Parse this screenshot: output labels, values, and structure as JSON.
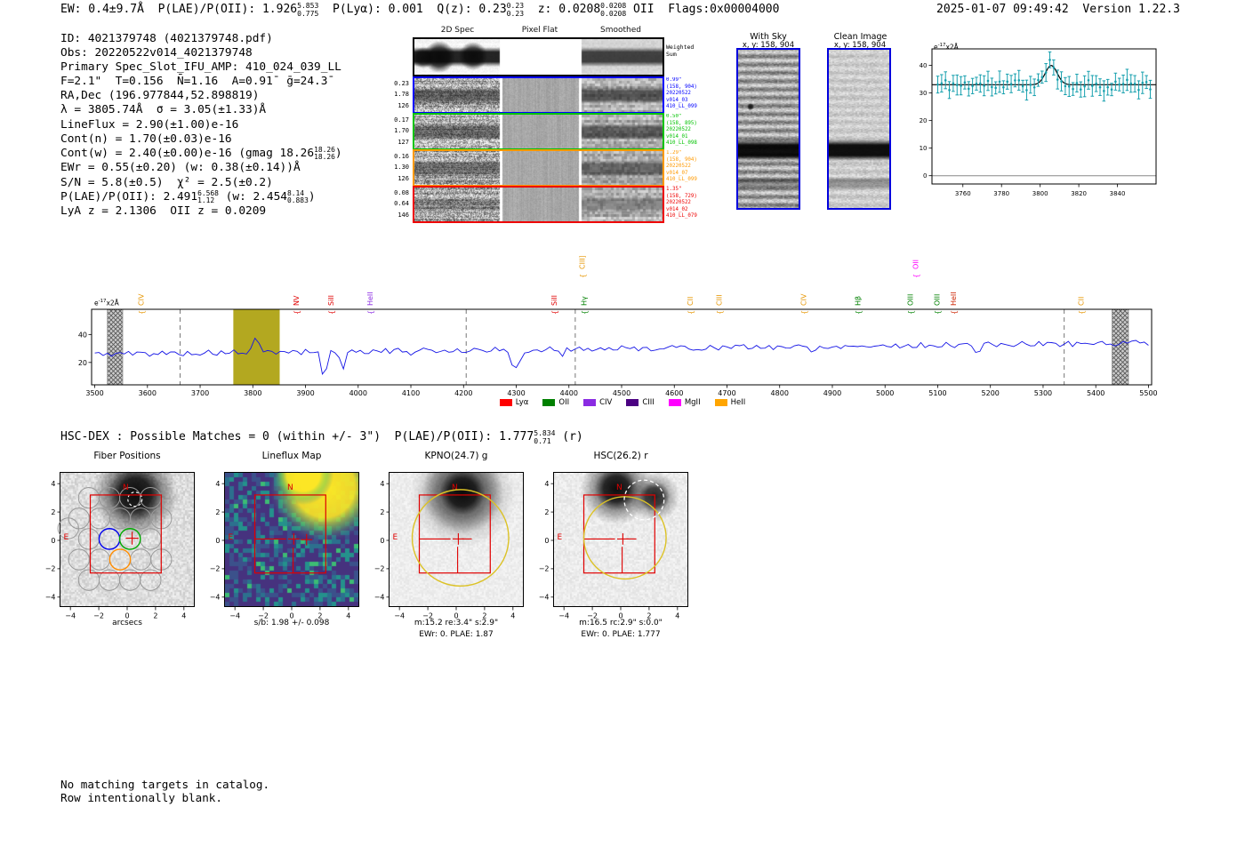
{
  "header": {
    "left_segments": [
      "EW: 0.4±9.7Å  P(LAE)/P(OII): 1.926",
      {
        "stack": [
          "5.853",
          "0.775"
        ]
      },
      "  P(Lyα): 0.001  Q(z): 0.23",
      {
        "stack": [
          "0.23",
          "0.23"
        ]
      },
      "  z: 0.0208",
      {
        "stack": [
          "0.0208",
          "0.0208"
        ]
      },
      " OII  Flags:0x00004000"
    ],
    "datetime": "2025-01-07 09:49:42",
    "version": "Version 1.22.3"
  },
  "info_lines": [
    [
      "ID: 4021379748 (4021379748.pdf)"
    ],
    [
      "Obs: 20220522v014_4021379748"
    ],
    [
      "Primary Spec_Slot_IFU_AMP: 410_024_039_LL"
    ],
    [
      "F=2.1\"  T=0.156  N̄=1.16  A=0.91̄  ḡ=24.3̄"
    ],
    [
      "RA,Dec (196.977844,52.898819)"
    ],
    [
      "λ = 3805.74Å  σ = 3.05(±1.33)Å"
    ],
    [
      "LineFlux = 2.90(±1.00)e-16"
    ],
    [
      "Cont(n) = 1.70(±0.03)e-16"
    ],
    [
      "Cont(w) = 2.40(±0.00)e-16 (gmag 18.26",
      {
        "stack": [
          "18.26",
          "18.26"
        ]
      },
      ")"
    ],
    [
      "EWr = 0.55(±0.20) (w: 0.38(±0.14))Å"
    ],
    [
      "S/N = 5.8(±0.5)  χ² = 2.5(±0.2)"
    ],
    [
      "P(LAE)/P(OII): 2.491",
      {
        "stack": [
          "6.568",
          "1.12"
        ]
      },
      " (w: 2.454",
      {
        "stack": [
          "8.14",
          "0.883"
        ]
      },
      ")"
    ],
    [
      "LyA z = 2.1306  OII z = 0.0209"
    ]
  ],
  "spec2d": {
    "col_titles": [
      "2D Spec",
      "Pixel Flat",
      "Smoothed"
    ],
    "weighted_label": [
      "Weighted",
      "Sum"
    ],
    "rows": [
      {
        "stats": [
          "0.23",
          "1.78",
          "126"
        ],
        "color": "#0000ff",
        "ann": [
          "0.99\"",
          "(158, 904)",
          "20220522",
          "v014_03",
          "410_LL_099"
        ]
      },
      {
        "stats": [
          "0.17",
          "1.70",
          "127"
        ],
        "color": "#00c300",
        "ann": [
          "0.50\"",
          "(158, 895)",
          "20220522",
          "v014_01",
          "410_LL_098"
        ]
      },
      {
        "stats": [
          "0.16",
          "1.30",
          "126"
        ],
        "color": "#ff9900",
        "ann": [
          "1.29\"",
          "(158, 904)",
          "20220522",
          "v014_07",
          "410_LL_099"
        ]
      },
      {
        "stats": [
          "0.08",
          "0.64",
          "146"
        ],
        "color": "#ee0000",
        "ann": [
          "1.35\"",
          "(158, 729)",
          "20220522",
          "v014_02",
          "410_LL_079"
        ]
      }
    ]
  },
  "sky_panels": [
    {
      "title": "With Sky",
      "coords": "x, y: 158, 904"
    },
    {
      "title": "Clean Image",
      "coords": "x, y: 158, 904"
    }
  ],
  "chart_data": [
    {
      "id": "line_fit_zoom",
      "type": "scatter",
      "title": "",
      "ylabel": "e-17x2Å",
      "xlim": [
        3744,
        3860
      ],
      "ylim": [
        -3,
        46
      ],
      "xticks": [
        3760,
        3780,
        3800,
        3820,
        3840
      ],
      "yticks": [
        0,
        10,
        20,
        30,
        40
      ],
      "point_color": "#17a0ae",
      "fit_color": "#000000",
      "fit": {
        "baseline": 33,
        "peak_x": 3805.74,
        "peak_amp": 7,
        "sigma": 3.05
      },
      "noise_model": {
        "seed": 11,
        "noise": 2.3,
        "err": 3.0,
        "step": 2,
        "range": [
          3747,
          3857
        ]
      }
    },
    {
      "id": "full_spectrum",
      "type": "line",
      "ylabel": "e-17x2Å",
      "line_color": "#1414e6",
      "xlim": [
        3494,
        5506
      ],
      "ylim": [
        4,
        58
      ],
      "xticks": [
        3500,
        3600,
        3700,
        3800,
        3900,
        4000,
        4100,
        4200,
        4300,
        4400,
        4500,
        4600,
        4700,
        4800,
        4900,
        5000,
        5100,
        5200,
        5300,
        5400,
        5500
      ],
      "yticks": [
        20,
        40
      ],
      "highlight_band": {
        "x0": 3763,
        "x1": 3851,
        "color": "#b3a820"
      },
      "hatch_bands": [
        [
          3524,
          3553
        ],
        [
          5431,
          5462
        ]
      ],
      "dashed_lines": [
        3662,
        4205,
        4412,
        5340
      ],
      "continuum": {
        "start_wave": 3500,
        "end_wave": 5506,
        "start_value": 26,
        "end_value": 34,
        "noise": 2.0,
        "seed": 5,
        "step": 8
      },
      "features": [
        {
          "x": 3806,
          "amp": 10,
          "sigma": 5
        },
        {
          "x": 3935,
          "amp": -18,
          "sigma": 5
        },
        {
          "x": 3969,
          "amp": -14,
          "sigma": 4
        },
        {
          "x": 4102,
          "amp": -5,
          "sigma": 5
        },
        {
          "x": 4300,
          "amp": -14,
          "sigma": 9
        },
        {
          "x": 4385,
          "amp": -4,
          "sigma": 5
        },
        {
          "x": 4862,
          "amp": -5,
          "sigma": 5
        },
        {
          "x": 5175,
          "amp": -5,
          "sigma": 6
        }
      ],
      "line_labels": [
        {
          "wave": 3588,
          "label": "CIV",
          "color": "#e69500",
          "tier": 0
        },
        {
          "wave": 3882,
          "label": "NV",
          "color": "#e00000",
          "tier": 0
        },
        {
          "wave": 3948,
          "label": "SiII",
          "color": "#e00000",
          "tier": 0
        },
        {
          "wave": 4022,
          "label": "HeII",
          "color": "#8a2be2",
          "tier": 0
        },
        {
          "wave": 4372,
          "label": "SiII",
          "color": "#e00000",
          "tier": 0
        },
        {
          "wave": 4428,
          "label": "Hγ",
          "color": "#008000",
          "tier": 0
        },
        {
          "wave": 4425,
          "label": "CIII]",
          "color": "#e69500",
          "tier": 1
        },
        {
          "wave": 4630,
          "label": "CII",
          "color": "#e69500",
          "tier": 0
        },
        {
          "wave": 4685,
          "label": "CIII",
          "color": "#e69500",
          "tier": 0
        },
        {
          "wave": 4845,
          "label": "CIV",
          "color": "#e69500",
          "tier": 0
        },
        {
          "wave": 4948,
          "label": "Hβ",
          "color": "#008000",
          "tier": 0
        },
        {
          "wave": 5048,
          "label": "OIII",
          "color": "#008000",
          "tier": 0
        },
        {
          "wave": 5058,
          "label": "OII",
          "color": "#ff00ff",
          "tier": 1
        },
        {
          "wave": 5098,
          "label": "OIII",
          "color": "#008000",
          "tier": 0
        },
        {
          "wave": 5130,
          "label": "HeII",
          "color": "#cc2200",
          "tier": 0
        },
        {
          "wave": 5372,
          "label": "CII",
          "color": "#e69500",
          "tier": 0
        }
      ],
      "legend": [
        {
          "label": "Lyα",
          "color": "#ff0000"
        },
        {
          "label": "OII",
          "color": "#008000"
        },
        {
          "label": "CIV",
          "color": "#8a2be2"
        },
        {
          "label": "CIII",
          "color": "#4b0082"
        },
        {
          "label": "MgII",
          "color": "#ff00ff"
        },
        {
          "label": "HeII",
          "color": "#ffa500"
        }
      ]
    }
  ],
  "hscdex_segments": [
    "HSC-DEX : Possible Matches = 0 (within +/- 3\")  P(LAE)/P(OII): 1.777",
    {
      "stack": [
        "5.834",
        "0.71"
      ]
    },
    " (r)"
  ],
  "cutouts": [
    {
      "title": "Fiber Positions",
      "type": "fiber",
      "caption_lines": [
        "arcsecs"
      ]
    },
    {
      "title": "Lineflux Map",
      "type": "lineflux",
      "caption_lines": [
        "s/b: 1.98 +/- 0.098"
      ]
    },
    {
      "title": "KPNO(24.7) g",
      "type": "catalog_g",
      "aperture_radius_arcsec": 3.4,
      "caption_lines": [
        "m:15.2  re:3.4\"  s:2.9\"",
        "EWr: 0. PLAE: 1.87"
      ]
    },
    {
      "title": "HSC(26.2) r",
      "type": "catalog_r",
      "aperture_radius_arcsec": 2.9,
      "caption_lines": [
        "m:16.5  rc:2.9\"  s:0.0\"",
        "EWr: 0. PLAE: 1.777"
      ]
    }
  ],
  "cutout_axis": {
    "ticks": [
      -4,
      -2,
      0,
      2,
      4
    ],
    "range": [
      -4.7,
      4.7
    ]
  },
  "compass": {
    "north": "N",
    "east": "E"
  },
  "footer_lines": [
    "No matching targets in catalog.",
    "Row intentionally blank."
  ]
}
